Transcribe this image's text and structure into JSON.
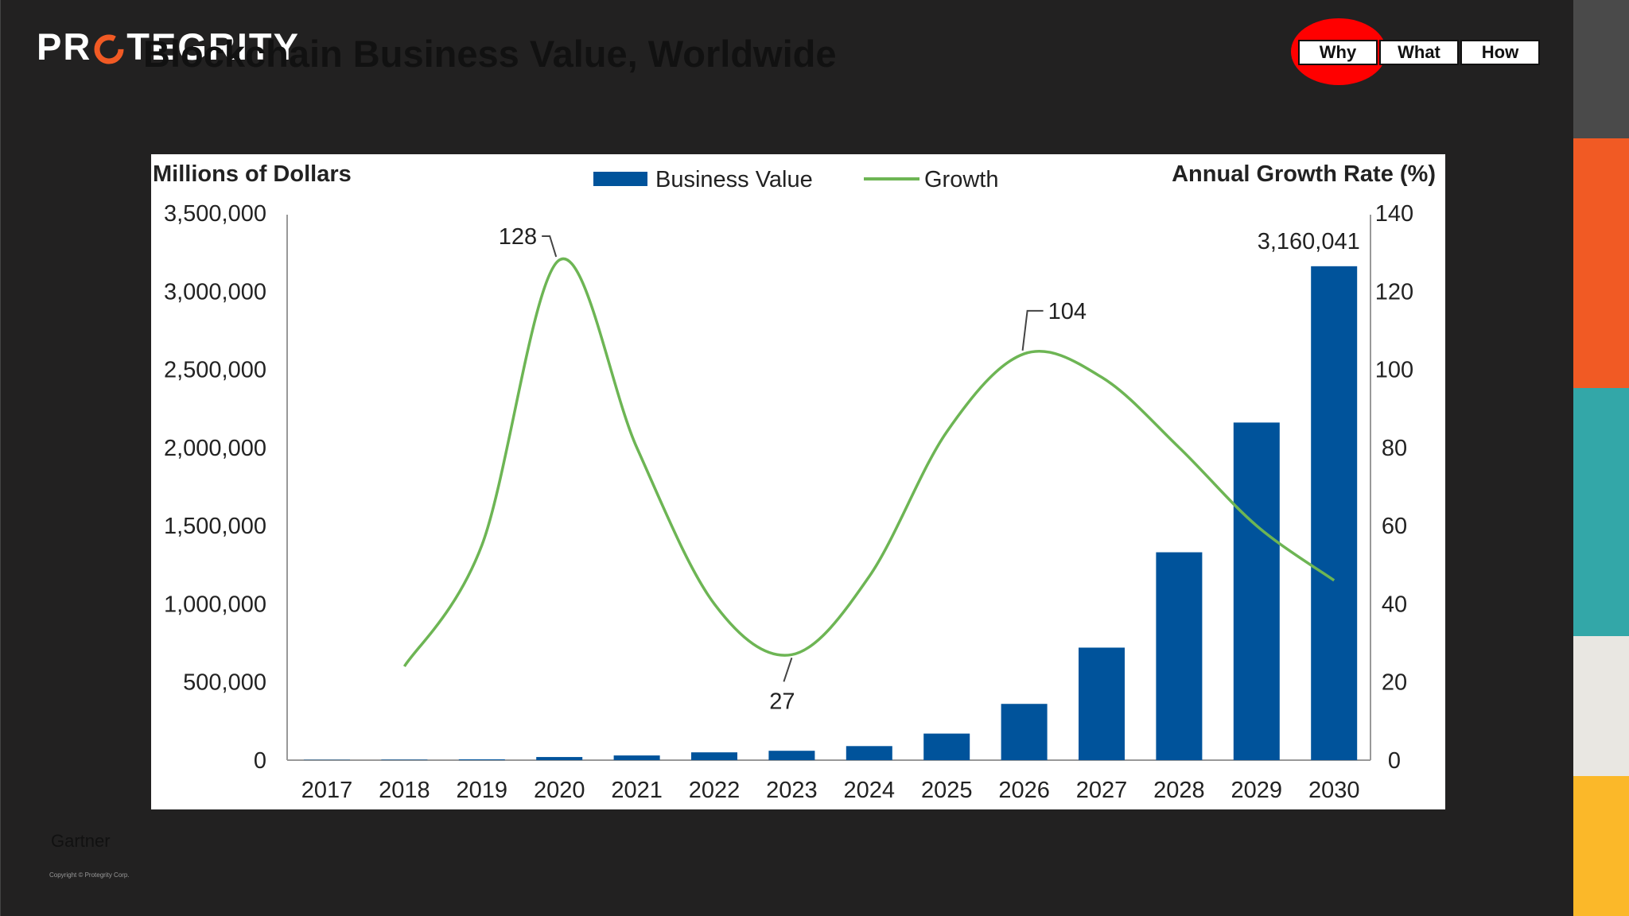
{
  "logo": {
    "text_before": "PR",
    "text_after": "TEGRITY"
  },
  "slide_title": "Blockchain Business Value, Worldwide",
  "nav": {
    "items": [
      "Why",
      "What",
      "How"
    ],
    "active": "Why"
  },
  "source": "Gartner",
  "copyright": "Copyright © Protegrity Corp.",
  "colors": {
    "background": "#222121",
    "bar": "#00539b",
    "line": "#6db554",
    "highlight": "#ff0000",
    "stripes": [
      "#4a4a4a",
      "#f15a24",
      "#33a7a8",
      "#e9e7e2",
      "#fbb829"
    ]
  },
  "chart_data": {
    "type": "bar",
    "categories": [
      "2017",
      "2018",
      "2019",
      "2020",
      "2021",
      "2022",
      "2023",
      "2024",
      "2025",
      "2026",
      "2027",
      "2028",
      "2029",
      "2030"
    ],
    "ylabel_left": "Millions of Dollars",
    "ylabel_right": "Annual Growth Rate (%)",
    "ylim_left": [
      0,
      3500000
    ],
    "ylim_right": [
      0,
      140
    ],
    "yticks_left": [
      "3,500,000",
      "3,000,000",
      "2,500,000",
      "2,000,000",
      "1,500,000",
      "1,000,000",
      "500,000",
      "0"
    ],
    "yticks_right": [
      "140",
      "120",
      "100",
      "80",
      "60",
      "40",
      "20",
      "0"
    ],
    "legend": {
      "placement": "top-center",
      "entries": [
        "Business Value",
        "Growth"
      ]
    },
    "series": [
      {
        "name": "Business Value",
        "type": "bar",
        "axis": "left",
        "values": [
          2000,
          3000,
          5000,
          20000,
          30000,
          50000,
          60000,
          90000,
          170000,
          360000,
          720000,
          1330000,
          2160000,
          3160041
        ]
      },
      {
        "name": "Growth",
        "type": "line",
        "axis": "right",
        "values": [
          null,
          24,
          55,
          128,
          80,
          40,
          27,
          47,
          84,
          104,
          98,
          80,
          60,
          46
        ]
      }
    ],
    "annotations": [
      {
        "text": "128",
        "series": "Growth",
        "category": "2020"
      },
      {
        "text": "27",
        "series": "Growth",
        "category": "2023"
      },
      {
        "text": "104",
        "series": "Growth",
        "category": "2026"
      },
      {
        "text": "3,160,041",
        "series": "Business Value",
        "category": "2030"
      }
    ]
  }
}
